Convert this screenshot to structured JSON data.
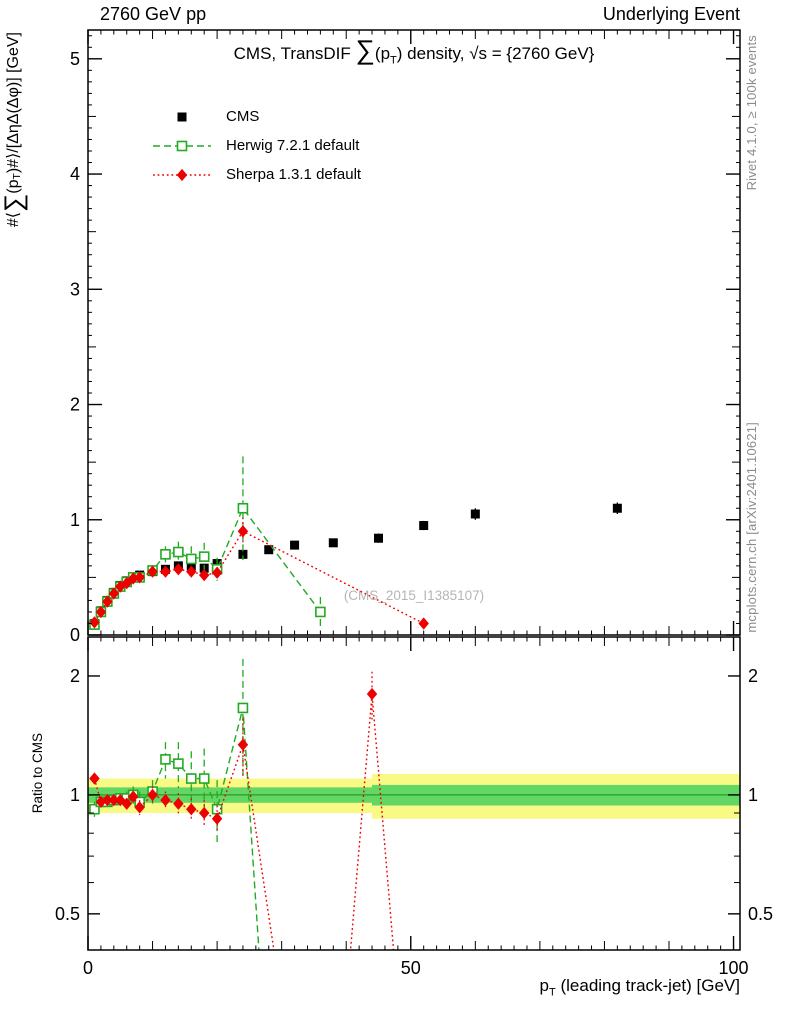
{
  "page": {
    "header_left": "2760 GeV pp",
    "header_right": "Underlying Event",
    "watermark": "(CMS_2015_I1385107)",
    "side_note_top": "Rivet 4.1.0, ≥ 100k events",
    "side_note_bottom": "mcplots.cern.ch [arXiv:2401.10621]"
  },
  "chart_data": [
    {
      "type": "scatter",
      "panel": "main",
      "title": "CMS, TransDIF ∑(p_{T}) density, √s = {2760 GeV}",
      "ylabel": "#⟨∑(p_{T})#⟩/[ΔηΔ(Δφ)] [GeV]",
      "xlim": [
        0,
        101
      ],
      "ylim": [
        0,
        5.25
      ],
      "yticks": [
        0,
        1,
        2,
        3,
        4,
        5
      ],
      "grid": false,
      "legend_position": "top-left",
      "legend": [
        {
          "label": "CMS",
          "color": "#000000",
          "marker": "square-filled",
          "line": "none"
        },
        {
          "label": "Herwig 7.2.1 default",
          "color": "#22aa22",
          "marker": "square-open",
          "line": "dashed"
        },
        {
          "label": "Sherpa 1.3.1 default",
          "color": "#ee0000",
          "marker": "diamond-filled",
          "line": "dotted"
        }
      ],
      "series": [
        {
          "name": "CMS",
          "color": "#000000",
          "marker": "square-filled",
          "line": "none",
          "x": [
            1,
            2,
            3,
            4,
            5,
            6,
            7,
            8,
            10,
            12,
            14,
            16,
            18,
            20,
            24,
            28,
            32,
            38,
            45,
            52,
            60,
            82
          ],
          "y": [
            0.1,
            0.21,
            0.3,
            0.37,
            0.43,
            0.47,
            0.5,
            0.52,
            0.55,
            0.57,
            0.6,
            0.6,
            0.58,
            0.62,
            0.7,
            0.74,
            0.78,
            0.8,
            0.84,
            0.95,
            1.05,
            1.1
          ],
          "yerr": [
            0.01,
            0.01,
            0.01,
            0.01,
            0.01,
            0.01,
            0.01,
            0.02,
            0.02,
            0.02,
            0.02,
            0.02,
            0.03,
            0.03,
            0.03,
            0.03,
            0.03,
            0.03,
            0.04,
            0.04,
            0.05,
            0.05
          ]
        },
        {
          "name": "Herwig 7.2.1 default",
          "color": "#22aa22",
          "marker": "square-open",
          "line": "dashed",
          "x": [
            1,
            2,
            3,
            4,
            5,
            6,
            7,
            8,
            10,
            12,
            14,
            16,
            18,
            20,
            24,
            36
          ],
          "y": [
            0.09,
            0.2,
            0.29,
            0.36,
            0.42,
            0.46,
            0.5,
            0.5,
            0.56,
            0.7,
            0.72,
            0.66,
            0.68,
            0.57,
            1.1,
            0.2
          ],
          "yerr": [
            0.01,
            0.01,
            0.01,
            0.01,
            0.02,
            0.02,
            0.02,
            0.03,
            0.04,
            0.07,
            0.09,
            0.11,
            0.12,
            0.1,
            0.45,
            0.13
          ]
        },
        {
          "name": "Sherpa 1.3.1 default",
          "color": "#ee0000",
          "marker": "diamond-filled",
          "line": "dotted",
          "x": [
            1,
            2,
            3,
            4,
            5,
            6,
            7,
            8,
            10,
            12,
            14,
            16,
            18,
            20,
            24,
            52
          ],
          "y": [
            0.11,
            0.2,
            0.29,
            0.36,
            0.42,
            0.45,
            0.49,
            0.5,
            0.55,
            0.55,
            0.57,
            0.55,
            0.52,
            0.54,
            0.9,
            0.1
          ],
          "yerr": [
            0.01,
            0.01,
            0.01,
            0.01,
            0.01,
            0.01,
            0.02,
            0.02,
            0.02,
            0.03,
            0.04,
            0.04,
            0.05,
            0.05,
            0.12,
            0.04
          ]
        }
      ]
    },
    {
      "type": "ratio",
      "panel": "ratio",
      "ylabel": "Ratio to CMS",
      "xlabel": "p_{T} (leading track-jet) [GeV]",
      "xlim": [
        0,
        101
      ],
      "ylim": [
        0.405,
        2.51
      ],
      "yscale": "log",
      "yticks": [
        0.5,
        1,
        2
      ],
      "ytick_labels": [
        "0.5",
        "1",
        "2"
      ],
      "yminors": [
        0.6,
        0.7,
        0.8,
        0.9
      ],
      "xticks": [
        0,
        50,
        100
      ],
      "bands": {
        "yellow": {
          "color": "#f9f986",
          "segments": [
            {
              "x0": 0,
              "x1": 44,
              "lo": 0.9,
              "hi": 1.1
            },
            {
              "x0": 44,
              "x1": 101,
              "lo": 0.87,
              "hi": 1.13
            }
          ]
        },
        "green": {
          "color": "#63d763",
          "segments": [
            {
              "x0": 0,
              "x1": 44,
              "lo": 0.955,
              "hi": 1.045
            },
            {
              "x0": 44,
              "x1": 101,
              "lo": 0.94,
              "hi": 1.06
            }
          ]
        }
      },
      "reference_line": {
        "y": 1.0,
        "color": "#1e8c1e"
      },
      "series": [
        {
          "name": "Herwig 7.2.1 default",
          "color": "#22aa22",
          "marker": "square-open",
          "line": "dashed",
          "x": [
            1,
            2,
            3,
            4,
            5,
            6,
            7,
            8,
            10,
            12,
            14,
            16,
            18,
            20,
            24,
            27
          ],
          "y": [
            0.92,
            0.96,
            0.96,
            0.97,
            0.98,
            0.98,
            1.0,
            0.96,
            1.02,
            1.23,
            1.2,
            1.1,
            1.1,
            0.92,
            1.66,
            0.3
          ],
          "yerr": [
            0.04,
            0.03,
            0.03,
            0.03,
            0.03,
            0.04,
            0.05,
            0.06,
            0.07,
            0.13,
            0.16,
            0.19,
            0.21,
            0.17,
            0.55,
            0.0
          ]
        },
        {
          "name": "Sherpa 1.3.1 default",
          "color": "#ee0000",
          "marker": "diamond-filled",
          "line": "dotted",
          "x": [
            1,
            2,
            3,
            4,
            5,
            6,
            7,
            8,
            10,
            12,
            14,
            16,
            18,
            20,
            24,
            30,
            40,
            44,
            48
          ],
          "y": [
            1.1,
            0.96,
            0.97,
            0.97,
            0.97,
            0.95,
            0.99,
            0.93,
            1.0,
            0.97,
            0.95,
            0.92,
            0.9,
            0.87,
            1.34,
            0.3,
            0.3,
            1.8,
            0.3
          ],
          "yerr": [
            0.03,
            0.02,
            0.02,
            0.02,
            0.02,
            0.03,
            0.03,
            0.04,
            0.05,
            0.05,
            0.06,
            0.06,
            0.07,
            0.07,
            0.22,
            0.0,
            0.0,
            0.25,
            0.0
          ]
        }
      ]
    }
  ]
}
